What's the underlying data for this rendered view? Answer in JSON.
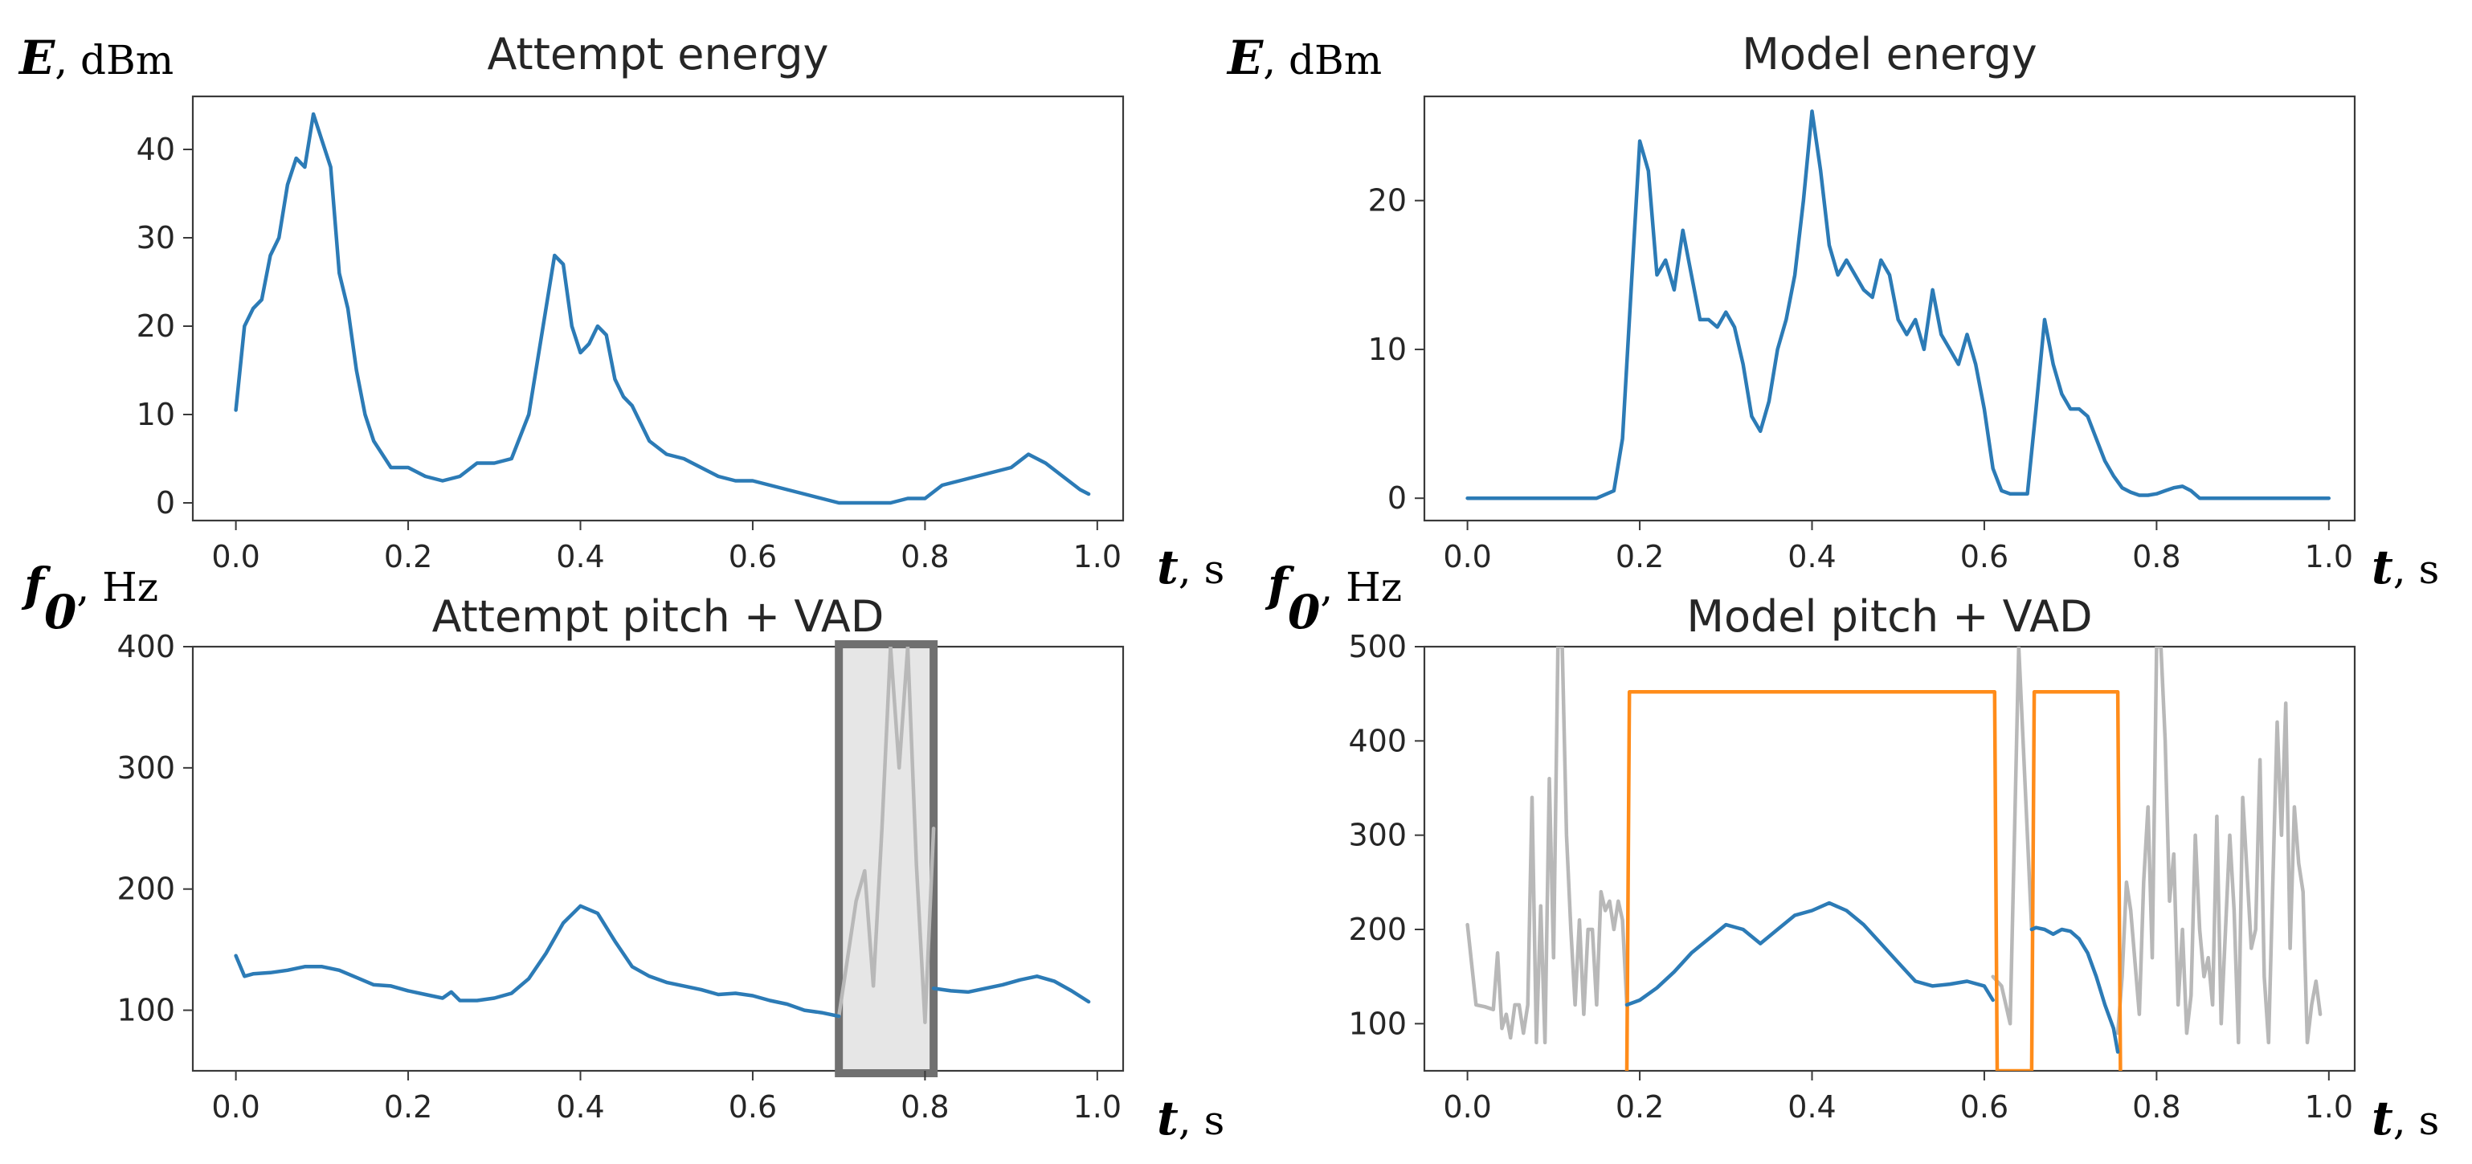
{
  "colors": {
    "primary": "#2c7bb6",
    "vad": "#ff8c1a",
    "unvoiced": "#b8b8b8",
    "highlight_fill": "#e6e6e6",
    "highlight_stroke": "#707070"
  },
  "chart_data": [
    {
      "id": "attempt-energy",
      "type": "line",
      "title": "Attempt energy",
      "ylabel_var": "E",
      "ylabel_unit": ", dBm",
      "xlabel_var": "t",
      "xlabel_unit": ", s",
      "xlim": [
        -0.05,
        1.03
      ],
      "ylim": [
        -2,
        46
      ],
      "xticks": [
        0.0,
        0.2,
        0.4,
        0.6,
        0.8,
        1.0
      ],
      "xtick_labels": [
        "0.0",
        "0.2",
        "0.4",
        "0.6",
        "0.8",
        "1.0"
      ],
      "yticks": [
        0,
        10,
        20,
        30,
        40
      ],
      "ytick_labels": [
        "0",
        "10",
        "20",
        "30",
        "40"
      ],
      "series": [
        {
          "role": "energy",
          "x": [
            0.0,
            0.01,
            0.02,
            0.03,
            0.04,
            0.05,
            0.06,
            0.07,
            0.08,
            0.09,
            0.1,
            0.11,
            0.12,
            0.13,
            0.14,
            0.15,
            0.16,
            0.18,
            0.2,
            0.22,
            0.24,
            0.26,
            0.28,
            0.3,
            0.32,
            0.34,
            0.36,
            0.37,
            0.38,
            0.39,
            0.4,
            0.41,
            0.42,
            0.43,
            0.44,
            0.45,
            0.46,
            0.48,
            0.5,
            0.52,
            0.54,
            0.56,
            0.58,
            0.6,
            0.62,
            0.64,
            0.66,
            0.68,
            0.7,
            0.72,
            0.74,
            0.76,
            0.78,
            0.8,
            0.82,
            0.84,
            0.86,
            0.88,
            0.9,
            0.92,
            0.94,
            0.96,
            0.98,
            0.99
          ],
          "y": [
            10.5,
            20,
            22,
            23,
            28,
            30,
            36,
            39,
            38,
            44,
            41,
            38,
            26,
            22,
            15,
            10,
            7,
            4,
            4,
            3,
            2.5,
            3,
            4.5,
            4.5,
            5,
            10,
            22,
            28,
            27,
            20,
            17,
            18,
            20,
            19,
            14,
            12,
            11,
            7,
            5.5,
            5,
            4,
            3,
            2.5,
            2.5,
            2,
            1.5,
            1,
            0.5,
            0,
            0,
            0,
            0,
            0.5,
            0.5,
            2,
            2.5,
            3,
            3.5,
            4,
            5.5,
            4.5,
            3,
            1.5,
            1
          ]
        }
      ]
    },
    {
      "id": "model-energy",
      "type": "line",
      "title": "Model energy",
      "ylabel_var": "E",
      "ylabel_unit": ", dBm",
      "xlabel_var": "t",
      "xlabel_unit": ", s",
      "xlim": [
        -0.05,
        1.03
      ],
      "ylim": [
        -1.5,
        27
      ],
      "xticks": [
        0.0,
        0.2,
        0.4,
        0.6,
        0.8,
        1.0
      ],
      "xtick_labels": [
        "0.0",
        "0.2",
        "0.4",
        "0.6",
        "0.8",
        "1.0"
      ],
      "yticks": [
        0,
        10,
        20
      ],
      "ytick_labels": [
        "0",
        "10",
        "20"
      ],
      "series": [
        {
          "role": "energy",
          "x": [
            0.0,
            0.05,
            0.1,
            0.15,
            0.17,
            0.18,
            0.19,
            0.2,
            0.21,
            0.22,
            0.23,
            0.24,
            0.25,
            0.26,
            0.27,
            0.28,
            0.29,
            0.3,
            0.31,
            0.32,
            0.33,
            0.34,
            0.35,
            0.36,
            0.37,
            0.38,
            0.39,
            0.4,
            0.41,
            0.42,
            0.43,
            0.44,
            0.45,
            0.46,
            0.47,
            0.48,
            0.49,
            0.5,
            0.51,
            0.52,
            0.53,
            0.54,
            0.55,
            0.56,
            0.57,
            0.58,
            0.59,
            0.6,
            0.61,
            0.62,
            0.63,
            0.64,
            0.65,
            0.66,
            0.67,
            0.68,
            0.69,
            0.7,
            0.71,
            0.72,
            0.73,
            0.74,
            0.75,
            0.76,
            0.77,
            0.78,
            0.79,
            0.8,
            0.81,
            0.82,
            0.83,
            0.84,
            0.85,
            0.9,
            0.95,
            1.0
          ],
          "y": [
            0,
            0,
            0,
            0,
            0.5,
            4,
            14,
            24,
            22,
            15,
            16,
            14,
            18,
            15,
            12,
            12,
            11.5,
            12.5,
            11.5,
            9,
            5.5,
            4.5,
            6.5,
            10,
            12,
            15,
            20,
            26,
            22,
            17,
            15,
            16,
            15,
            14,
            13.5,
            16,
            15,
            12,
            11,
            12,
            10,
            14,
            11,
            10,
            9,
            11,
            9,
            6,
            2,
            0.5,
            0.3,
            0.3,
            0.3,
            6,
            12,
            9,
            7,
            6,
            6,
            5.5,
            4,
            2.5,
            1.5,
            0.7,
            0.4,
            0.2,
            0.2,
            0.3,
            0.5,
            0.7,
            0.8,
            0.5,
            0,
            0,
            0,
            0
          ]
        }
      ]
    },
    {
      "id": "attempt-pitch",
      "type": "line",
      "title": "Attempt pitch + VAD",
      "ylabel_var": "f",
      "ylabel_sub": "0",
      "ylabel_unit": ", Hz",
      "xlabel_var": "t",
      "xlabel_unit": ", s",
      "xlim": [
        -0.05,
        1.03
      ],
      "ylim": [
        50,
        400
      ],
      "xticks": [
        0.0,
        0.2,
        0.4,
        0.6,
        0.8,
        1.0
      ],
      "xtick_labels": [
        "0.0",
        "0.2",
        "0.4",
        "0.6",
        "0.8",
        "1.0"
      ],
      "yticks": [
        100,
        200,
        300,
        400
      ],
      "ytick_labels": [
        "100",
        "200",
        "300",
        "400"
      ],
      "highlight": {
        "x_start": 0.7,
        "x_end": 0.81
      },
      "series": [
        {
          "role": "pitch",
          "x": [
            0.0,
            0.01,
            0.02,
            0.04,
            0.06,
            0.08,
            0.1,
            0.12,
            0.14,
            0.16,
            0.18,
            0.2,
            0.22,
            0.24,
            0.25,
            0.26,
            0.28,
            0.3,
            0.32,
            0.34,
            0.36,
            0.38,
            0.4,
            0.42,
            0.44,
            0.46,
            0.48,
            0.5,
            0.52,
            0.54,
            0.56,
            0.58,
            0.6,
            0.62,
            0.64,
            0.66,
            0.68,
            0.7
          ],
          "y": [
            145,
            128,
            130,
            131,
            133,
            136,
            136,
            133,
            127,
            121,
            120,
            116,
            113,
            110,
            115,
            108,
            108,
            110,
            114,
            126,
            147,
            172,
            186,
            180,
            157,
            136,
            128,
            123,
            120,
            117,
            113,
            114,
            112,
            108,
            105,
            100,
            98,
            95
          ]
        },
        {
          "role": "pitch",
          "x": [
            0.81,
            0.83,
            0.85,
            0.87,
            0.89,
            0.91,
            0.93,
            0.95,
            0.97,
            0.99
          ],
          "y": [
            118,
            116,
            115,
            118,
            121,
            125,
            128,
            124,
            116,
            107
          ]
        },
        {
          "role": "unvoiced",
          "x": [
            0.7,
            0.72,
            0.73,
            0.74,
            0.75,
            0.76,
            0.77,
            0.78,
            0.79,
            0.8,
            0.81
          ],
          "y": [
            95,
            190,
            215,
            120,
            250,
            400,
            300,
            400,
            220,
            90,
            250
          ]
        }
      ]
    },
    {
      "id": "model-pitch",
      "type": "line",
      "title": "Model pitch + VAD",
      "ylabel_var": "f",
      "ylabel_sub": "0",
      "ylabel_unit": ", Hz",
      "xlabel_var": "t",
      "xlabel_unit": ", s",
      "xlim": [
        -0.05,
        1.03
      ],
      "ylim": [
        50,
        500
      ],
      "xticks": [
        0.0,
        0.2,
        0.4,
        0.6,
        0.8,
        1.0
      ],
      "xtick_labels": [
        "0.0",
        "0.2",
        "0.4",
        "0.6",
        "0.8",
        "1.0"
      ],
      "yticks": [
        100,
        200,
        300,
        400,
        500
      ],
      "ytick_labels": [
        "100",
        "200",
        "300",
        "400",
        "500"
      ],
      "series": [
        {
          "role": "unvoiced",
          "x": [
            0.0,
            0.01,
            0.02,
            0.03,
            0.035,
            0.04,
            0.045,
            0.05,
            0.055,
            0.06,
            0.065,
            0.07,
            0.075,
            0.08,
            0.085,
            0.09,
            0.095,
            0.1,
            0.105,
            0.11,
            0.115,
            0.12,
            0.125,
            0.13,
            0.135,
            0.14,
            0.145,
            0.15,
            0.155,
            0.16,
            0.165,
            0.17,
            0.175,
            0.18,
            0.185
          ],
          "y": [
            205,
            120,
            118,
            115,
            175,
            95,
            110,
            85,
            120,
            120,
            90,
            120,
            340,
            80,
            225,
            80,
            360,
            170,
            500,
            500,
            300,
            200,
            120,
            210,
            110,
            200,
            200,
            120,
            240,
            220,
            230,
            200,
            230,
            210,
            120
          ]
        },
        {
          "role": "unvoiced",
          "x": [
            0.61,
            0.62,
            0.625,
            0.63,
            0.635,
            0.64,
            0.645,
            0.65,
            0.655
          ],
          "y": [
            150,
            140,
            120,
            100,
            300,
            500,
            400,
            300,
            200
          ]
        },
        {
          "role": "unvoiced",
          "x": [
            0.755,
            0.76,
            0.765,
            0.77,
            0.78,
            0.785,
            0.79,
            0.795,
            0.8,
            0.805,
            0.81,
            0.815,
            0.82,
            0.825,
            0.83,
            0.835,
            0.84,
            0.845,
            0.85,
            0.855,
            0.86,
            0.865,
            0.87,
            0.875,
            0.88,
            0.885,
            0.89,
            0.895,
            0.9,
            0.905,
            0.91,
            0.915,
            0.92,
            0.925,
            0.93,
            0.935,
            0.94,
            0.945,
            0.95,
            0.955,
            0.96,
            0.965,
            0.97,
            0.975,
            0.98,
            0.985,
            0.99
          ],
          "y": [
            90,
            150,
            250,
            220,
            110,
            250,
            330,
            170,
            500,
            500,
            400,
            230,
            280,
            120,
            200,
            90,
            130,
            300,
            200,
            150,
            170,
            120,
            320,
            100,
            200,
            300,
            220,
            80,
            340,
            260,
            180,
            200,
            380,
            150,
            80,
            250,
            420,
            300,
            440,
            180,
            330,
            270,
            240,
            80,
            120,
            145,
            110
          ]
        },
        {
          "role": "vad",
          "x": [
            0.185,
            0.188,
            0.612,
            0.615,
            0.655,
            0.658,
            0.755,
            0.758
          ],
          "y": [
            50,
            452,
            452,
            50,
            50,
            452,
            452,
            50
          ]
        },
        {
          "role": "pitch",
          "x": [
            0.185,
            0.2,
            0.22,
            0.24,
            0.26,
            0.28,
            0.3,
            0.32,
            0.34,
            0.36,
            0.38,
            0.4,
            0.42,
            0.44,
            0.46,
            0.48,
            0.5,
            0.52,
            0.54,
            0.56,
            0.58,
            0.6,
            0.61
          ],
          "y": [
            120,
            125,
            138,
            155,
            175,
            190,
            205,
            200,
            185,
            200,
            215,
            220,
            228,
            220,
            205,
            185,
            165,
            145,
            140,
            142,
            145,
            140,
            125
          ]
        },
        {
          "role": "pitch",
          "x": [
            0.655,
            0.66,
            0.67,
            0.68,
            0.69,
            0.7,
            0.71,
            0.72,
            0.73,
            0.74,
            0.75,
            0.755
          ],
          "y": [
            200,
            202,
            200,
            195,
            200,
            198,
            190,
            175,
            150,
            120,
            95,
            70
          ]
        }
      ]
    }
  ]
}
